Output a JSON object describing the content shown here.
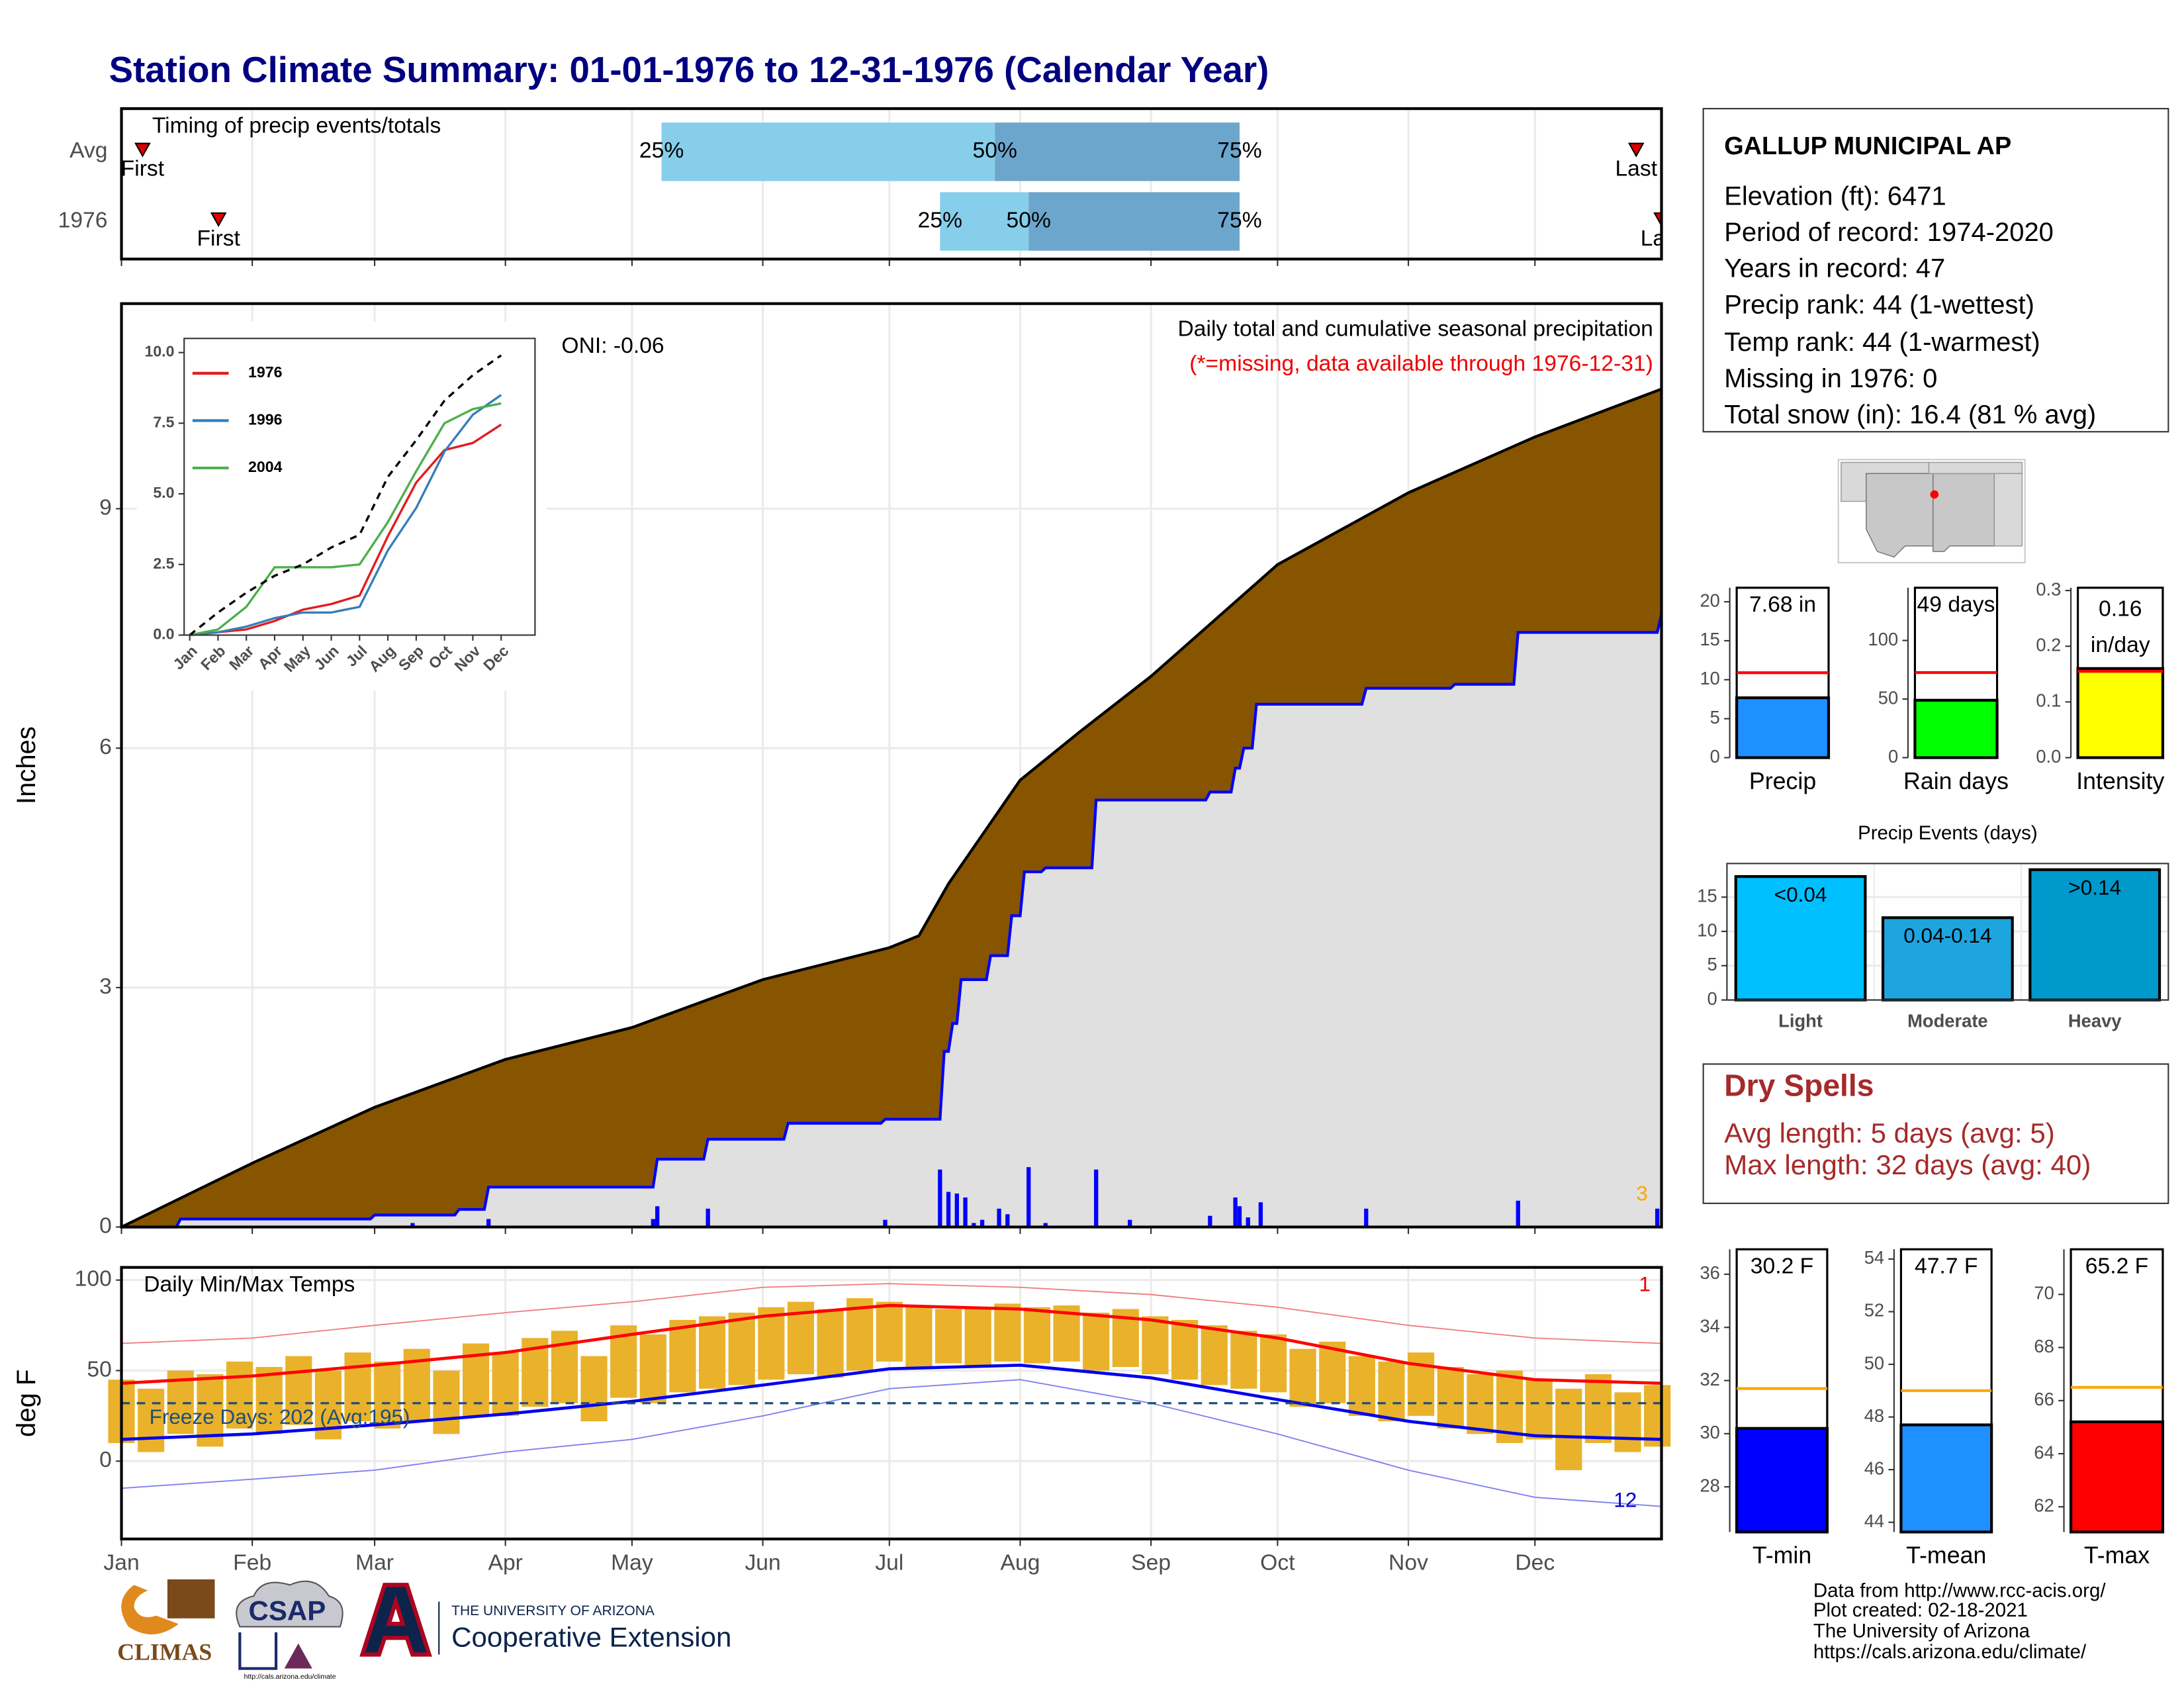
{
  "title": "Station Climate Summary: 01-01-1976 to 12-31-1976 (Calendar Year)",
  "station": {
    "name": "GALLUP MUNICIPAL AP",
    "lines": [
      "Elevation (ft): 6471",
      "Period of record: 1974-2020",
      "Years in record: 47",
      "Precip rank: 44 (1-wettest)",
      "Temp rank: 44 (1-warmest)",
      "Missing in 1976: 0",
      "Total snow (in): 16.4 (81 % avg)"
    ]
  },
  "dry_spells": {
    "title": "Dry Spells",
    "lines": [
      "Avg length: 5 days (avg: 5)",
      "Max length: 32 days (avg: 40)"
    ]
  },
  "footer": [
    "Data from http://www.rcc-acis.org/",
    "Plot created: 02-18-2021",
    "The University of Arizona",
    "https://cals.arizona.edu/climate/"
  ],
  "logos": {
    "climas": "CLIMAS",
    "csap": "CSAP",
    "csap_url": "http://cals.arizona.edu/climate",
    "university": "THE UNIVERSITY OF ARIZONA",
    "extension": "Cooperative Extension"
  },
  "chart_data": [
    {
      "type": "timing",
      "title": "Timing of precip events/totals",
      "xlim": [
        1,
        366
      ],
      "colors": {
        "lower": "#87ceeb",
        "upper": "#6ca6cd",
        "marker": "#e00000"
      },
      "labels": {
        "first": "First",
        "last": "Last",
        "q25": "25%",
        "q50": "50%",
        "q75": "75%"
      },
      "rows": [
        {
          "name": "Avg",
          "first": 6,
          "q25": 129,
          "q50": 208,
          "q75": 266,
          "last": 360
        },
        {
          "name": "1976",
          "first": 24,
          "q25": 195,
          "q50": 216,
          "q75": 266,
          "last": 366
        }
      ]
    },
    {
      "type": "area",
      "title": "Daily total and cumulative seasonal precipitation",
      "subtitle": "(*=missing, data available through 1976-12-31)",
      "annotation": "ONI: -0.06",
      "corner_label": "3",
      "ylabel": "Inches",
      "xlim": [
        1,
        366
      ],
      "ylim": [
        0,
        11.57
      ],
      "yticks": [
        0,
        3,
        6,
        9
      ],
      "grid": true,
      "series": [
        {
          "color": "#875400",
          "line_color": "#000000",
          "x": [
            1,
            32,
            61,
            92,
            122,
            153,
            183,
            190,
            197,
            214,
            228,
            245,
            275,
            306,
            336,
            366
          ],
          "values": [
            0,
            0.8,
            1.5,
            2.1,
            2.5,
            3.1,
            3.5,
            3.65,
            4.3,
            5.6,
            6.2,
            6.9,
            8.3,
            9.2,
            9.9,
            10.5
          ]
        },
        {
          "color": "#e0e0e0",
          "line_color": "#0000ff",
          "x": [
            1,
            14,
            15,
            60,
            61,
            80,
            81,
            87,
            88,
            127,
            128,
            139,
            140,
            158,
            159,
            181,
            182,
            195,
            196,
            197,
            198,
            199,
            200,
            206,
            207,
            211,
            212,
            214,
            215,
            219,
            220,
            231,
            232,
            258,
            259,
            264,
            265,
            266,
            267,
            269,
            270,
            295,
            296,
            316,
            317,
            331,
            332,
            365,
            366
          ],
          "values": [
            0,
            0,
            0.1,
            0.1,
            0.15,
            0.15,
            0.22,
            0.22,
            0.5,
            0.5,
            0.85,
            0.85,
            1.1,
            1.1,
            1.3,
            1.3,
            1.35,
            1.35,
            2.2,
            2.2,
            2.55,
            2.55,
            3.1,
            3.1,
            3.4,
            3.4,
            3.9,
            3.9,
            4.45,
            4.45,
            4.5,
            4.5,
            5.35,
            5.35,
            5.45,
            5.45,
            5.75,
            5.75,
            6.0,
            6.0,
            6.55,
            6.55,
            6.75,
            6.75,
            6.8,
            6.8,
            7.45,
            7.45,
            7.68
          ]
        }
      ],
      "daily": {
        "color": "#0000ff",
        "x": [
          70,
          88,
          127,
          128,
          140,
          182,
          195,
          197,
          199,
          201,
          203,
          205,
          209,
          211,
          216,
          220,
          232,
          240,
          259,
          265,
          266,
          268,
          271,
          296,
          332,
          365
        ],
        "values": [
          0.05,
          0.1,
          0.1,
          0.26,
          0.23,
          0.09,
          0.72,
          0.44,
          0.42,
          0.37,
          0.05,
          0.09,
          0.23,
          0.16,
          0.75,
          0.05,
          0.72,
          0.09,
          0.14,
          0.37,
          0.26,
          0.12,
          0.31,
          0.23,
          0.33,
          0.23
        ]
      }
    },
    {
      "type": "line",
      "categories": [
        "Jan",
        "Feb",
        "Mar",
        "Apr",
        "May",
        "Jun",
        "Jul",
        "Aug",
        "Sep",
        "Oct",
        "Nov",
        "Dec"
      ],
      "ylim": [
        0,
        10.5
      ],
      "yticks": [
        {
          "value": 0,
          "label": "0.0"
        },
        2.5,
        {
          "value": 5,
          "label": "5.0"
        },
        7.5,
        {
          "value": 10,
          "label": "10.0"
        }
      ],
      "series": [
        {
          "name": "1976",
          "color": "#e41a1c",
          "values": [
            0,
            0.1,
            0.2,
            0.5,
            0.9,
            1.1,
            1.4,
            3.5,
            5.4,
            6.55,
            6.8,
            7.45
          ]
        },
        {
          "name": "1996",
          "color": "#377eb8",
          "values": [
            0,
            0.1,
            0.3,
            0.6,
            0.8,
            0.8,
            1.0,
            3.0,
            4.5,
            6.5,
            7.8,
            8.5
          ]
        },
        {
          "name": "2004",
          "color": "#4daf4a",
          "values": [
            0,
            0.2,
            1.0,
            2.4,
            2.4,
            2.4,
            2.5,
            4.0,
            5.8,
            7.5,
            8.0,
            8.2
          ]
        },
        {
          "color": "#000000",
          "dashed": true,
          "values": [
            0,
            0.8,
            1.5,
            2.1,
            2.5,
            3.1,
            3.55,
            5.6,
            6.9,
            8.3,
            9.2,
            9.9
          ]
        }
      ]
    },
    {
      "type": "summary_bar",
      "xlabel": "Precip",
      "value": 7.68,
      "value_label": "7.68 in",
      "average": 10.9,
      "color": "#1e90ff",
      "avg_color": "#ff0000",
      "ylim": [
        0,
        21.8
      ],
      "yticks": [
        0,
        5,
        10,
        15,
        20
      ]
    },
    {
      "type": "summary_bar",
      "xlabel": "Rain days",
      "value": 49,
      "value_label": "49 days",
      "average": 72.6,
      "color": "#00ff00",
      "avg_color": "#ff0000",
      "ylim": [
        0,
        145
      ],
      "yticks": [
        0,
        50,
        100
      ]
    },
    {
      "type": "summary_bar",
      "xlabel": "Intensity",
      "value": 0.16,
      "value_label": [
        "0.16",
        "in/day"
      ],
      "average": 0.155,
      "color": "#ffff00",
      "avg_color": "#ff0000",
      "ylim": [
        0,
        0.305
      ],
      "yticks": [
        {
          "value": 0,
          "label": "0.0"
        },
        0.1,
        0.2,
        0.3
      ]
    },
    {
      "type": "bar",
      "title": "Precip Events (days)",
      "categories": [
        "Light",
        "Moderate",
        "Heavy"
      ],
      "thresholds": [
        "<0.04",
        "0.04-0.14",
        ">0.14"
      ],
      "values": [
        18,
        12,
        19
      ],
      "colors": [
        "#00bfff",
        "#1ea5e0",
        "#0099cc"
      ],
      "ylim": [
        0,
        19.9
      ],
      "yticks": [
        0,
        5,
        10,
        15
      ],
      "grid": true
    },
    {
      "type": "temperature",
      "title": "Daily Min/Max Temps",
      "ylabel": "deg F",
      "annotation": "Freeze Days: 202 (Avg:195)",
      "corner_top": "1",
      "corner_bottom": "12",
      "freeze": 32,
      "xlim": [
        1,
        366
      ],
      "xticks": [
        {
          "value": 1,
          "label": "Jan"
        },
        {
          "value": 32,
          "label": "Feb"
        },
        {
          "value": 61,
          "label": "Mar"
        },
        {
          "value": 92,
          "label": "Apr"
        },
        {
          "value": 122,
          "label": "May"
        },
        {
          "value": 153,
          "label": "Jun"
        },
        {
          "value": 183,
          "label": "Jul"
        },
        {
          "value": 214,
          "label": "Aug"
        },
        {
          "value": 245,
          "label": "Sep"
        },
        {
          "value": 275,
          "label": "Oct"
        },
        {
          "value": 306,
          "label": "Nov"
        },
        {
          "value": 336,
          "label": "Dec"
        }
      ],
      "ylim": [
        -43,
        107
      ],
      "yticks": [
        0,
        50,
        100
      ],
      "grid": true,
      "daily": {
        "color": "#e9b22a",
        "x": [
          1,
          8,
          15,
          22,
          29,
          36,
          43,
          50,
          57,
          64,
          71,
          78,
          85,
          92,
          99,
          106,
          113,
          120,
          127,
          134,
          141,
          148,
          155,
          162,
          169,
          176,
          183,
          190,
          197,
          204,
          211,
          218,
          225,
          232,
          239,
          246,
          253,
          260,
          267,
          274,
          281,
          288,
          295,
          302,
          309,
          316,
          323,
          330,
          337,
          344,
          351,
          358,
          365
        ],
        "max": [
          45,
          40,
          50,
          48,
          55,
          52,
          58,
          50,
          60,
          55,
          62,
          50,
          65,
          60,
          68,
          72,
          58,
          75,
          70,
          78,
          80,
          82,
          85,
          88,
          84,
          90,
          88,
          86,
          84,
          85,
          87,
          85,
          86,
          82,
          84,
          80,
          78,
          75,
          72,
          70,
          62,
          66,
          58,
          55,
          60,
          52,
          48,
          50,
          45,
          40,
          48,
          38,
          42
        ],
        "min": [
          10,
          5,
          15,
          8,
          18,
          15,
          20,
          12,
          22,
          18,
          22,
          15,
          25,
          25,
          30,
          32,
          22,
          35,
          32,
          38,
          40,
          42,
          45,
          48,
          46,
          50,
          55,
          52,
          54,
          53,
          55,
          54,
          55,
          50,
          52,
          48,
          45,
          42,
          40,
          38,
          30,
          32,
          25,
          22,
          25,
          18,
          15,
          10,
          12,
          -5,
          10,
          5,
          8
        ]
      },
      "series": [
        {
          "color": "#ff0000",
          "x": [
            1,
            32,
            61,
            92,
            122,
            153,
            183,
            214,
            245,
            275,
            306,
            336,
            366
          ],
          "values": [
            43,
            47,
            53,
            60,
            70,
            80,
            86,
            84,
            78,
            68,
            54,
            45,
            43
          ]
        },
        {
          "color": "#0000ee",
          "x": [
            1,
            32,
            61,
            92,
            122,
            153,
            183,
            214,
            245,
            275,
            306,
            336,
            366
          ],
          "values": [
            12,
            15,
            20,
            26,
            33,
            42,
            51,
            53,
            46,
            34,
            22,
            14,
            12
          ]
        },
        {
          "color": "#f08080",
          "x": [
            1,
            32,
            61,
            92,
            122,
            153,
            183,
            214,
            245,
            275,
            306,
            336,
            366
          ],
          "values": [
            65,
            68,
            75,
            82,
            88,
            96,
            98,
            96,
            92,
            85,
            75,
            68,
            65
          ]
        },
        {
          "color": "#8080f0",
          "x": [
            1,
            32,
            61,
            92,
            122,
            153,
            183,
            214,
            245,
            275,
            306,
            336,
            366
          ],
          "values": [
            -15,
            -10,
            -5,
            5,
            12,
            25,
            40,
            45,
            32,
            15,
            -5,
            -20,
            -25
          ]
        }
      ]
    },
    {
      "type": "summary_bar",
      "xlabel": "T-min",
      "value": 30.2,
      "value_label": "30.2 F",
      "average": 31.7,
      "color": "#0000ff",
      "avg_color": "#ffa500",
      "ylim": [
        26.3,
        36.94
      ],
      "yticks": [
        28,
        30,
        32,
        34,
        36
      ]
    },
    {
      "type": "summary_bar",
      "xlabel": "T-mean",
      "value": 47.7,
      "value_label": "47.7 F",
      "average": 49.0,
      "color": "#1e90ff",
      "avg_color": "#ffa500",
      "ylim": [
        43.63,
        54.37
      ],
      "yticks": [
        44,
        46,
        48,
        50,
        52,
        54
      ]
    },
    {
      "type": "summary_bar",
      "xlabel": "T-max",
      "value": 65.2,
      "value_label": "65.2 F",
      "average": 66.5,
      "color": "#ff0000",
      "avg_color": "#ffa500",
      "ylim": [
        61.05,
        71.7
      ],
      "yticks": [
        62,
        64,
        66,
        68,
        70
      ]
    }
  ]
}
